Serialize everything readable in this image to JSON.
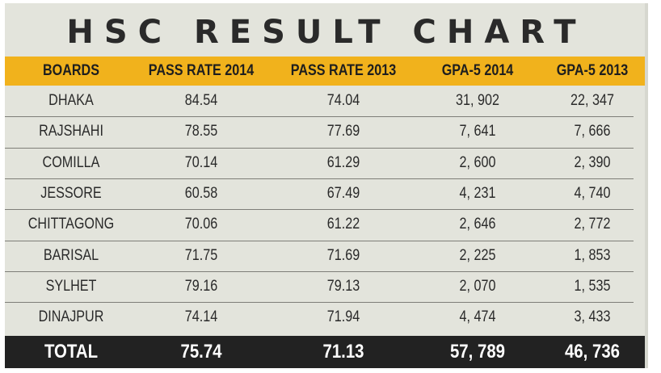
{
  "chart_data": {
    "type": "table",
    "title": "HSC RESULT CHART",
    "columns": [
      "BOARDS",
      "PASS RATE 2014",
      "PASS RATE 2013",
      "GPA-5 2014",
      "GPA-5 2013"
    ],
    "rows": [
      [
        "DHAKA",
        "84.54",
        "74.04",
        "31, 902",
        "22, 347"
      ],
      [
        "RAJSHAHI",
        "78.55",
        "77.69",
        "7, 641",
        "7, 666"
      ],
      [
        "COMILLA",
        "70.14",
        "61.29",
        "2, 600",
        "2, 390"
      ],
      [
        "JESSORE",
        "60.58",
        "67.49",
        "4, 231",
        "4, 740"
      ],
      [
        "CHITTAGONG",
        "70.06",
        "61.22",
        "2, 646",
        "2, 772"
      ],
      [
        "BARISAL",
        "71.75",
        "71.69",
        "2, 225",
        "1, 853"
      ],
      [
        "SYLHET",
        "79.16",
        "79.13",
        "2, 070",
        "1, 535"
      ],
      [
        "DINAJPUR",
        "74.14",
        "71.94",
        "4, 474",
        "3, 433"
      ]
    ],
    "total": [
      "TOTAL",
      "75.74",
      "71.13",
      "57, 789",
      "46, 736"
    ]
  },
  "colors": {
    "background": "#e3e4dc",
    "header": "#f1b21c",
    "total_bar": "#222222",
    "total_text": "#ffffff",
    "rules": "#7e7e78"
  }
}
